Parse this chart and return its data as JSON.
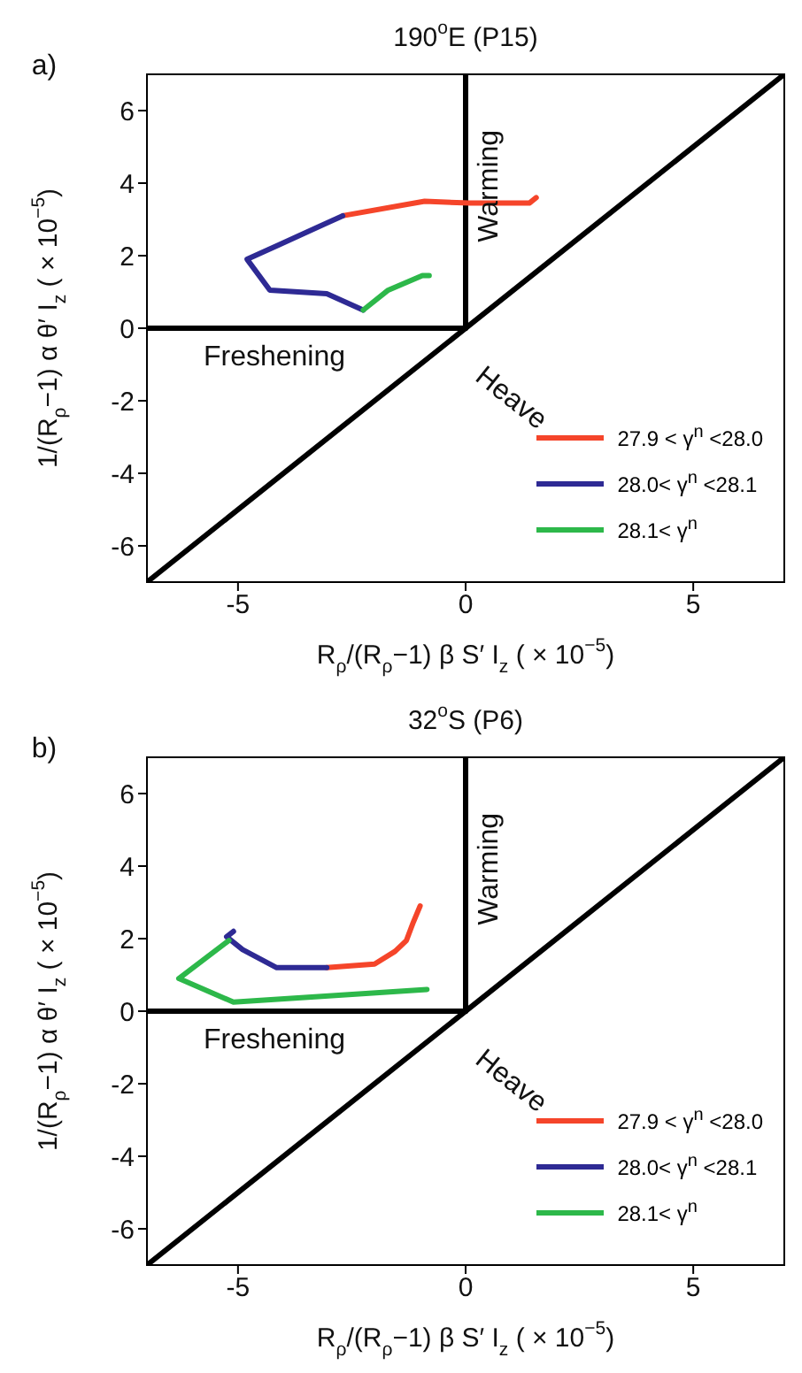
{
  "chart_data": [
    {
      "type": "line",
      "title": "190$^{o}$E (P15)",
      "xlabel": "R$_{ρ}$/(R$_{ρ}$−1) β S′ I$_{z}$ ( × 10$^{−5}$)",
      "ylabel": "1/(R$_{ρ}$−1) α θ′ I$_{z}$ ( × 10$^{−5}$)",
      "annotations": [
        "a)",
        "Warming",
        "Freshening",
        "Heave"
      ],
      "xlim": [
        -7,
        7
      ],
      "ylim": [
        -7,
        7
      ],
      "xticks": [
        -5,
        0,
        5
      ],
      "yticks": [
        -6,
        -4,
        -2,
        0,
        2,
        4,
        6
      ],
      "grid": false,
      "legend": "bottom right",
      "marker": "none",
      "line_style": "solid",
      "series": [
        {
          "color": "#000000",
          "x": [
            -7,
            7
          ],
          "values": [
            -7,
            7
          ]
        },
        {
          "color": "#000000",
          "x": [
            0,
            0
          ],
          "values": [
            0,
            7
          ]
        },
        {
          "color": "#000000",
          "x": [
            -7,
            0
          ],
          "values": [
            0,
            0
          ]
        },
        {
          "name": "27.9 < γ$^{n}$ <28.0",
          "color": "#f5452a",
          "x": [
            -2.7,
            -0.9,
            0.1,
            1.4,
            1.55
          ],
          "values": [
            3.1,
            3.5,
            3.45,
            3.45,
            3.6
          ]
        },
        {
          "name": "28.0< γ$^{n}$ <28.1",
          "color": "#2e2a94",
          "x": [
            -2.7,
            -4.1,
            -4.8,
            -4.3,
            -3.05,
            -2.25
          ],
          "values": [
            3.1,
            2.3,
            1.9,
            1.05,
            0.95,
            0.5
          ]
        },
        {
          "name": "28.1< γ$^{n}$",
          "color": "#2db84a",
          "x": [
            -2.25,
            -1.7,
            -0.95,
            -0.8
          ],
          "values": [
            0.5,
            1.05,
            1.45,
            1.45
          ]
        }
      ]
    },
    {
      "type": "line",
      "title": "32$^{o}$S (P6)",
      "xlabel": "R$_{ρ}$/(R$_{ρ}$−1) β S′ I$_{z}$ ( × 10$^{−5}$)",
      "ylabel": "1/(R$_{ρ}$−1) α θ′ I$_{z}$ ( × 10$^{−5}$)",
      "annotations": [
        "b)",
        "Warming",
        "Freshening",
        "Heave"
      ],
      "xlim": [
        -7,
        7
      ],
      "ylim": [
        -7,
        7
      ],
      "xticks": [
        -5,
        0,
        5
      ],
      "yticks": [
        -6,
        -4,
        -2,
        0,
        2,
        4,
        6
      ],
      "grid": false,
      "legend": "bottom right",
      "marker": "none",
      "line_style": "solid",
      "series": [
        {
          "color": "#000000",
          "x": [
            -7,
            7
          ],
          "values": [
            -7,
            7
          ]
        },
        {
          "color": "#000000",
          "x": [
            0,
            0
          ],
          "values": [
            0,
            7
          ]
        },
        {
          "color": "#000000",
          "x": [
            -7,
            0
          ],
          "values": [
            0,
            0
          ]
        },
        {
          "name": "27.9 < γ$^{n}$ <28.0",
          "color": "#f5452a",
          "x": [
            -3.05,
            -2.0,
            -1.55,
            -1.3,
            -1.15,
            -1.0
          ],
          "values": [
            1.2,
            1.3,
            1.65,
            1.95,
            2.45,
            2.9
          ]
        },
        {
          "name": "28.0< γ$^{n}$ <28.1",
          "color": "#2e2a94",
          "x": [
            -5.1,
            -5.25,
            -4.9,
            -4.15,
            -3.05
          ],
          "values": [
            2.2,
            2.05,
            1.7,
            1.2,
            1.2
          ]
        },
        {
          "name": "28.1< γ$^{n}$",
          "color": "#2db84a",
          "x": [
            -5.2,
            -6.3,
            -5.1,
            -0.85
          ],
          "values": [
            1.95,
            0.9,
            0.25,
            0.6
          ]
        }
      ]
    }
  ]
}
